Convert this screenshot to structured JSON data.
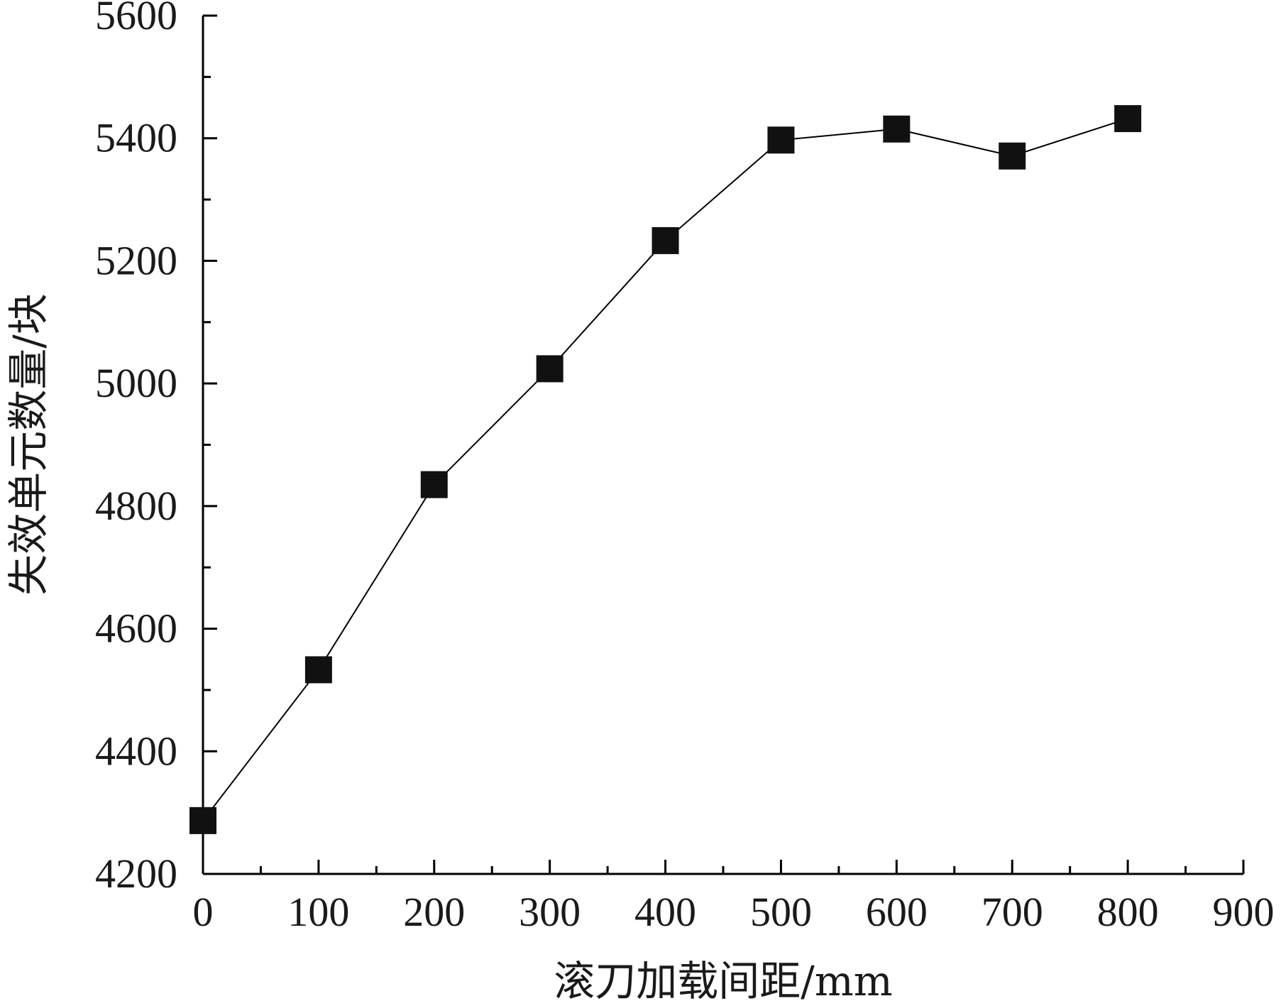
{
  "chart_data": {
    "type": "line",
    "title": "",
    "xlabel": "滚刀加载间距/mm",
    "ylabel": "失效单元数量/块",
    "xlim": [
      0,
      900
    ],
    "ylim": [
      4200,
      5600
    ],
    "x_ticks": [
      0,
      100,
      200,
      300,
      400,
      500,
      600,
      700,
      800,
      900
    ],
    "y_ticks": [
      4200,
      4400,
      4600,
      4800,
      5000,
      5200,
      5400,
      5600
    ],
    "x_minor_step": 50,
    "y_minor_step": 100,
    "grid": false,
    "legend": "none",
    "series": [
      {
        "marker": "square",
        "color": "#000000",
        "x": [
          0,
          100,
          200,
          300,
          400,
          500,
          600,
          700,
          800
        ],
        "y": [
          4287,
          4533,
          4835,
          5024,
          5233,
          5397,
          5415,
          5371,
          5432
        ]
      }
    ]
  }
}
